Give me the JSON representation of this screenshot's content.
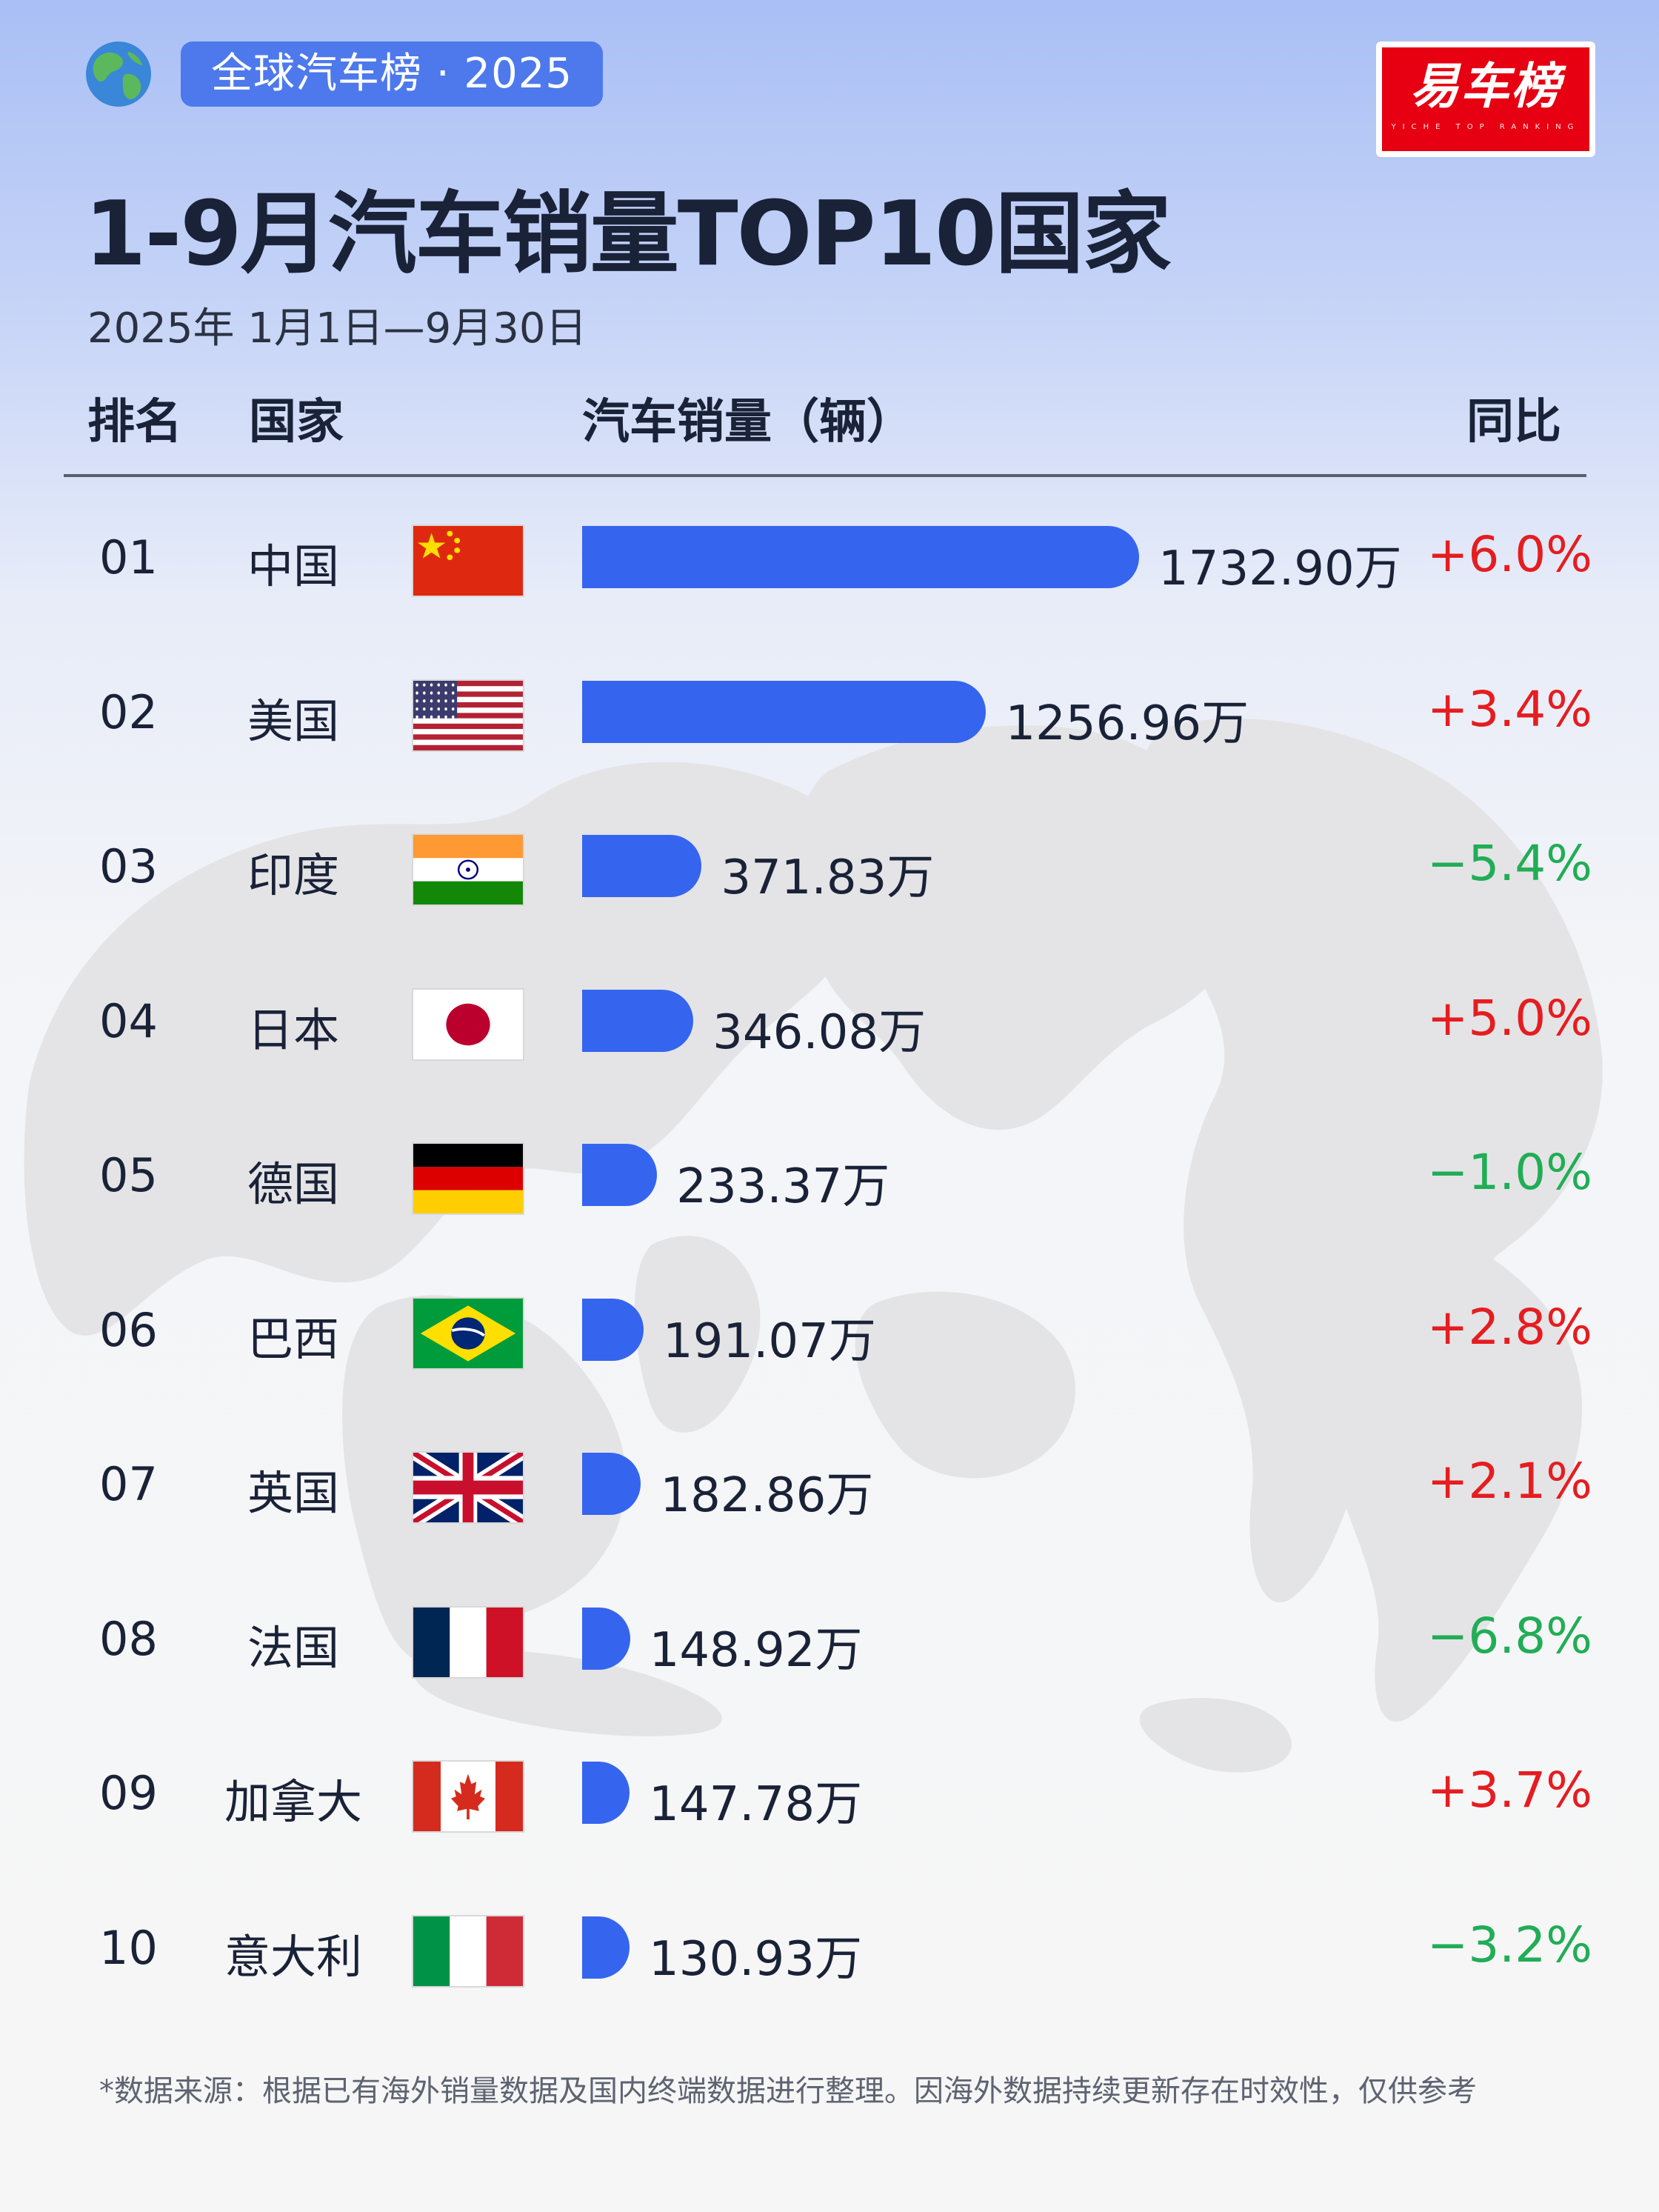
{
  "tag": "全球汽车榜 · 2025",
  "logo": {
    "main": "易车榜",
    "sub": "YICHE TOP RANKING"
  },
  "title": "1-9月汽车销量TOP10国家",
  "subtitle": "2025年 1月1日—9月30日",
  "headers": {
    "rank": "排名",
    "country": "国家",
    "sales": "汽车销量（辆）",
    "yoy": "同比"
  },
  "colors": {
    "bar": "#3565ee",
    "positive": "#e51d20",
    "negative": "#21ad56",
    "tag": "#4d79ec",
    "logo": "#e60012"
  },
  "chart_data": {
    "type": "bar",
    "orientation": "horizontal",
    "title": "1-9月汽车销量TOP10国家",
    "unit": "万",
    "categories": [
      "中国",
      "美国",
      "印度",
      "日本",
      "德国",
      "巴西",
      "英国",
      "法国",
      "加拿大",
      "意大利"
    ],
    "series": [
      {
        "values": [
          1732.9,
          1256.96,
          371.83,
          346.08,
          233.37,
          191.07,
          182.86,
          148.92,
          147.78,
          130.93
        ]
      }
    ],
    "xlim": [
      0,
      1732.9
    ],
    "grid": false,
    "legend": "none"
  },
  "rows": [
    {
      "rank": "01",
      "country": "中国",
      "flag": "china-flag-icon",
      "value_label": "1732.90万",
      "yoy": "+6.0%"
    },
    {
      "rank": "02",
      "country": "美国",
      "flag": "usa-flag-icon",
      "value_label": "1256.96万",
      "yoy": "+3.4%"
    },
    {
      "rank": "03",
      "country": "印度",
      "flag": "india-flag-icon",
      "value_label": "371.83万",
      "yoy": "−5.4%"
    },
    {
      "rank": "04",
      "country": "日本",
      "flag": "japan-flag-icon",
      "value_label": "346.08万",
      "yoy": "+5.0%"
    },
    {
      "rank": "05",
      "country": "德国",
      "flag": "germany-flag-icon",
      "value_label": "233.37万",
      "yoy": "−1.0%"
    },
    {
      "rank": "06",
      "country": "巴西",
      "flag": "brazil-flag-icon",
      "value_label": "191.07万",
      "yoy": "+2.8%"
    },
    {
      "rank": "07",
      "country": "英国",
      "flag": "uk-flag-icon",
      "value_label": "182.86万",
      "yoy": "+2.1%"
    },
    {
      "rank": "08",
      "country": "法国",
      "flag": "france-flag-icon",
      "value_label": "148.92万",
      "yoy": "−6.8%"
    },
    {
      "rank": "09",
      "country": "加拿大",
      "flag": "canada-flag-icon",
      "value_label": "147.78万",
      "yoy": "+3.7%"
    },
    {
      "rank": "10",
      "country": "意大利",
      "flag": "italy-flag-icon",
      "value_label": "130.93万",
      "yoy": "−3.2%"
    }
  ],
  "footnote": "*数据来源：根据已有海外销量数据及国内终端数据进行整理。因海外数据持续更新存在时效性，仅供参考",
  "icons": {
    "globe": "globe-icon",
    "map": "world-map-background"
  }
}
